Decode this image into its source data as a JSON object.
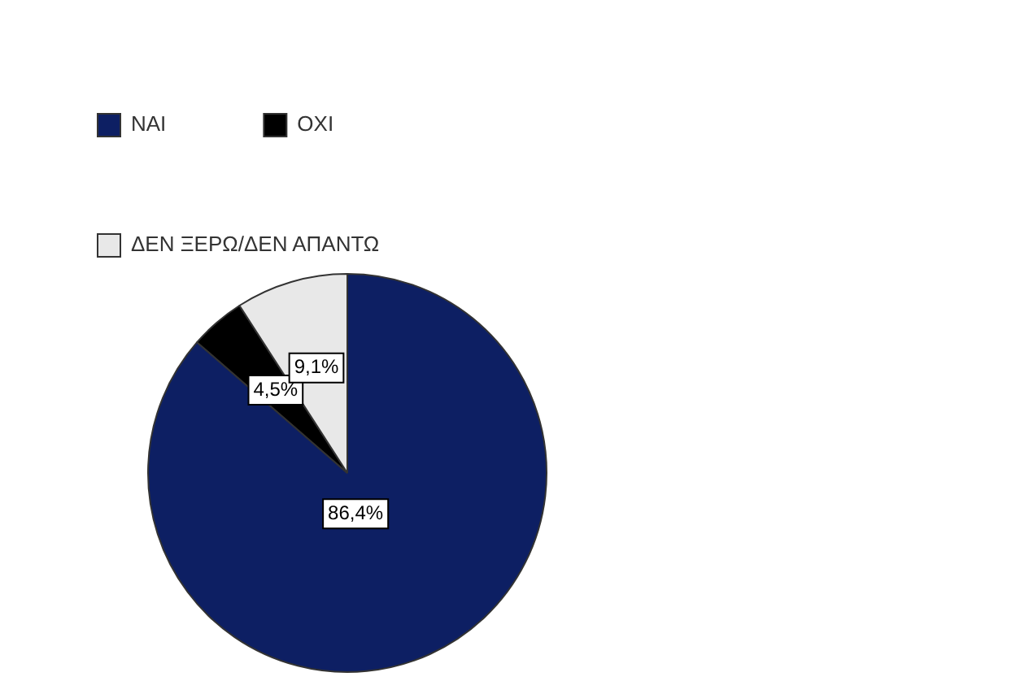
{
  "chart_data": {
    "type": "pie",
    "categories": [
      "ΝΑΙ",
      "ΟΧΙ",
      "ΔΕΝ ΞΕΡΩ/ΔΕΝ ΑΠΑΝΤΩ"
    ],
    "values": [
      86.4,
      4.5,
      9.1
    ],
    "colors": [
      "#0d1f63",
      "#000000",
      "#e8e8e8"
    ],
    "value_labels": [
      "86,4%",
      "4,5%",
      "9,1%"
    ],
    "legend": "top"
  }
}
